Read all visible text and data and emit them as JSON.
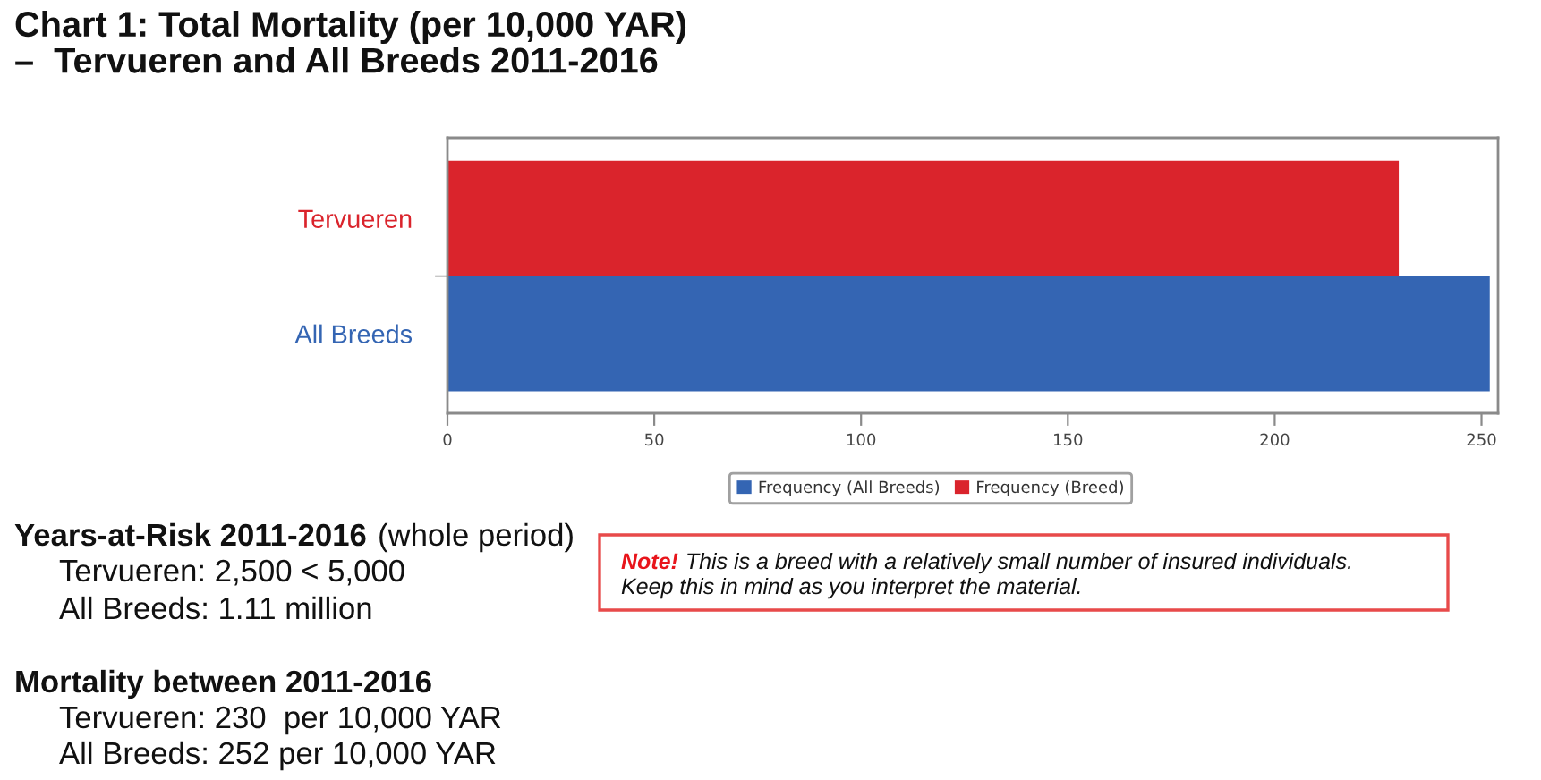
{
  "chart_data": {
    "type": "bar",
    "orientation": "horizontal",
    "title": "Chart 1: Total Mortality (per 10,000 YAR)\n–  Tervueren and All Breeds 2011-2016",
    "categories": [
      "Tervueren",
      "All Breeds"
    ],
    "series": [
      {
        "name": "Frequency (All Breeds)",
        "color": "#3465b3",
        "values": [
          null,
          252
        ]
      },
      {
        "name": "Frequency (Breed)",
        "color": "#da242c",
        "values": [
          230,
          null
        ]
      }
    ],
    "xlim": [
      0,
      254
    ],
    "xticks": [
      0,
      50,
      100,
      150,
      200,
      250
    ],
    "legend": "bottom",
    "annotations": [
      "Years-at-Risk 2011-2016",
      "(whole period)",
      "Tervueren: 2,500 < 5,000",
      "All Breeds: 1.11 million",
      "Mortality between 2011-2016",
      "Tervueren: 230  per 10,000 YAR",
      "All Breeds: 252 per 10,000 YAR",
      "Note!",
      "This is a breed with a relatively small number of insured individuals.",
      "Keep this in mind as you interpret the material."
    ]
  }
}
